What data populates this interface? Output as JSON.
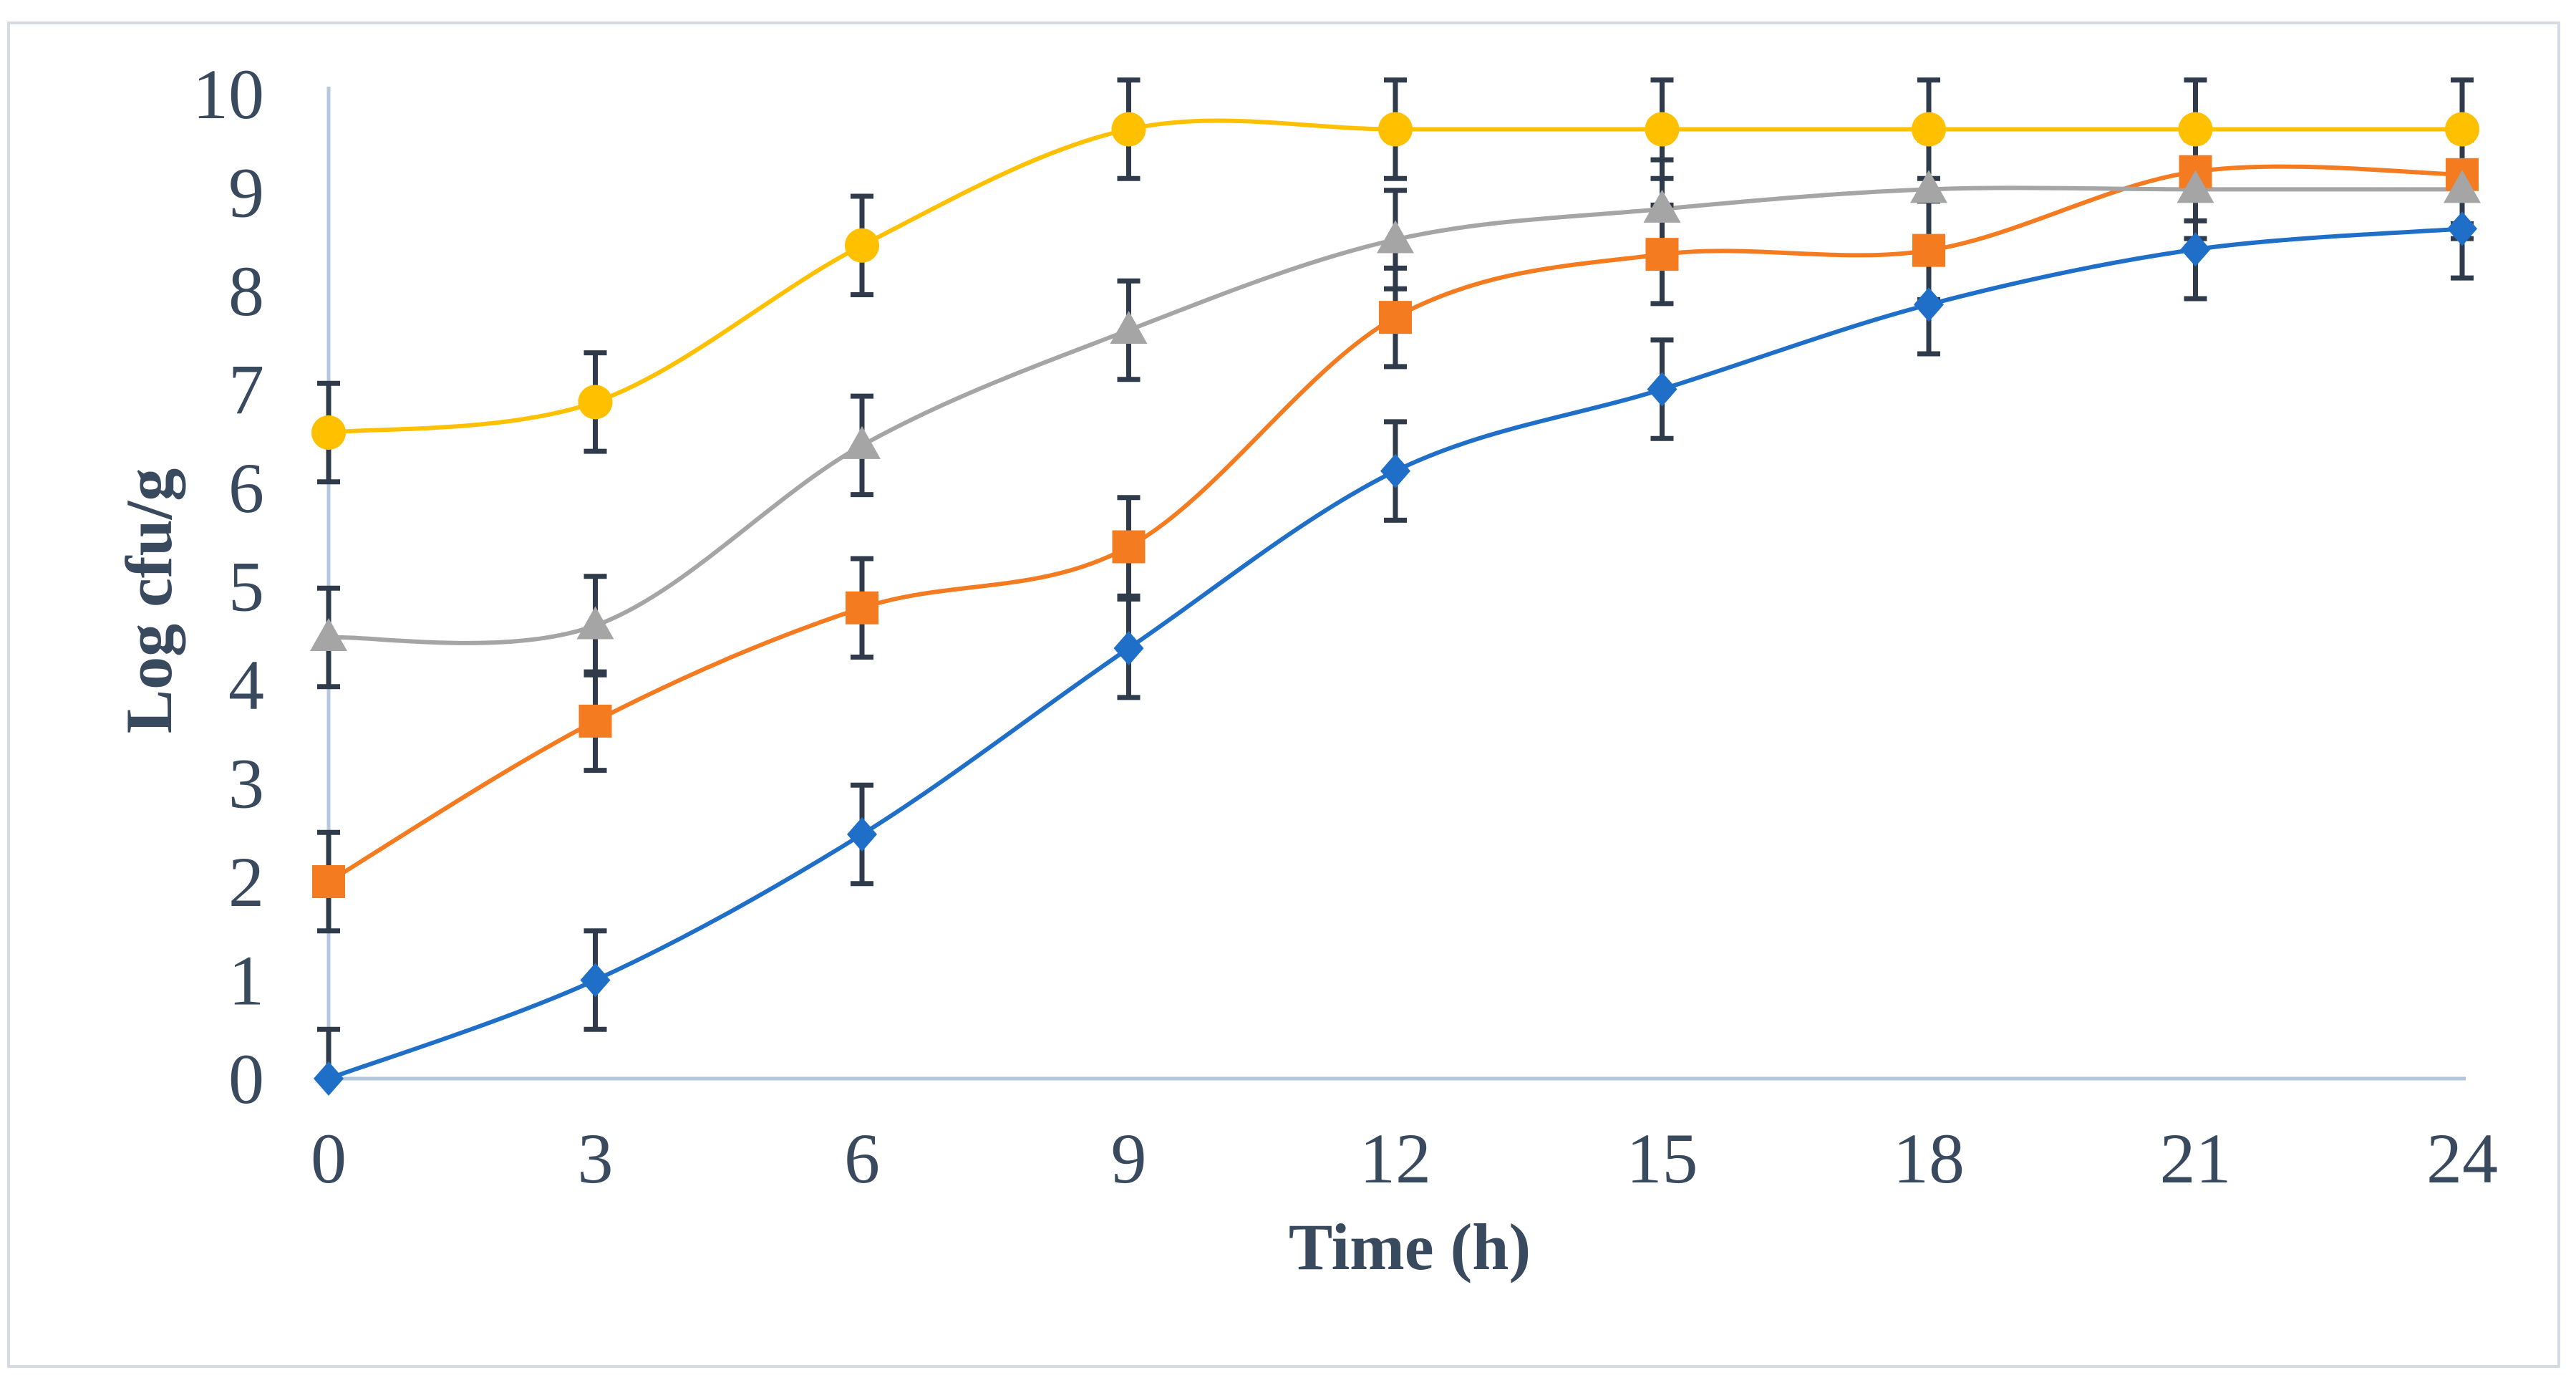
{
  "chart_data": {
    "type": "line",
    "title": "",
    "xlabel": "Time (h)",
    "ylabel": "Log cfu/g",
    "x": [
      0,
      3,
      6,
      9,
      12,
      15,
      18,
      21,
      24
    ],
    "xlim": [
      0,
      24
    ],
    "ylim": [
      0,
      10
    ],
    "x_ticks": [
      "0",
      "3",
      "6",
      "9",
      "12",
      "15",
      "18",
      "21",
      "24"
    ],
    "y_ticks": [
      "0",
      "1",
      "2",
      "3",
      "4",
      "5",
      "6",
      "7",
      "8",
      "9",
      "10"
    ],
    "grid": false,
    "legend": "none",
    "error_bar_halfwidth": 0.5,
    "series": [
      {
        "name": "series-1",
        "color": "#1f6fc8",
        "marker": "diamond",
        "values": [
          0,
          1,
          2.48,
          4.37,
          6.17,
          7.0,
          7.86,
          8.42,
          8.63
        ]
      },
      {
        "name": "series-2",
        "color": "#f47b20",
        "marker": "square",
        "values": [
          2.0,
          3.63,
          4.78,
          5.4,
          7.73,
          8.37,
          8.41,
          9.21,
          9.18
        ]
      },
      {
        "name": "series-3",
        "color": "#a5a5a5",
        "marker": "triangle",
        "values": [
          4.48,
          4.6,
          6.43,
          7.6,
          8.52,
          8.83,
          9.03,
          9.03,
          9.03
        ]
      },
      {
        "name": "series-4",
        "color": "#ffc000",
        "marker": "circle",
        "values": [
          6.56,
          6.87,
          8.46,
          9.64,
          9.64,
          9.64,
          9.64,
          9.64,
          9.64
        ]
      }
    ]
  }
}
